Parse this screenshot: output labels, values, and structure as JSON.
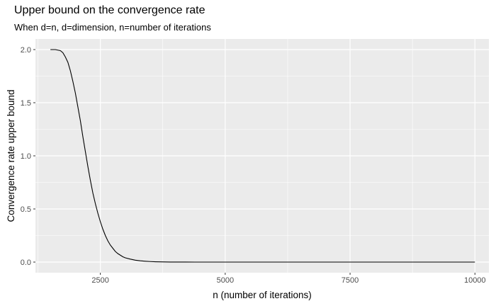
{
  "chart_data": {
    "type": "line",
    "title": "Upper bound on the convergence rate",
    "subtitle": "When d=n, d=dimension, n=number of iterations",
    "xlabel": "n (number of iterations)",
    "ylabel": "Convergence rate upper bound",
    "xlim": [
      1200,
      10280
    ],
    "ylim": [
      -0.1,
      2.1
    ],
    "x_ticks": [
      2500,
      5000,
      7500,
      10000
    ],
    "x_tick_labels": [
      "2500",
      "5000",
      "7500",
      "10000"
    ],
    "y_ticks": [
      0,
      0.5,
      1,
      1.5,
      2
    ],
    "y_tick_labels": [
      "0.0",
      "0.5",
      "1.0",
      "1.5",
      "2.0"
    ],
    "grid": true,
    "background": "#ebebeb",
    "grid_color": "#ffffff",
    "line_color": "#000000",
    "series": [
      {
        "x": [
          1500,
          1600,
          1700,
          1750,
          1800,
          1850,
          1900,
          1950,
          2000,
          2050,
          2100,
          2150,
          2200,
          2250,
          2300,
          2350,
          2400,
          2450,
          2500,
          2550,
          2600,
          2650,
          2700,
          2750,
          2800,
          2850,
          2900,
          2950,
          3000,
          3100,
          3200,
          3300,
          3400,
          3500,
          3600,
          3700,
          3800,
          3900,
          4000,
          4200,
          4400,
          4600,
          5000,
          6000,
          7000,
          8000,
          9000,
          10000
        ],
        "y": [
          2.0,
          2.0,
          1.99,
          1.97,
          1.93,
          1.88,
          1.8,
          1.7,
          1.59,
          1.46,
          1.33,
          1.18,
          1.04,
          0.9,
          0.77,
          0.65,
          0.55,
          0.46,
          0.38,
          0.31,
          0.25,
          0.2,
          0.16,
          0.13,
          0.1,
          0.08,
          0.065,
          0.05,
          0.04,
          0.028,
          0.018,
          0.012,
          0.008,
          0.005,
          0.003,
          0.002,
          0.001,
          0.0007,
          0.0004,
          0.0002,
          0.0001,
          0.0,
          0.0,
          0.0,
          0.0,
          0.0,
          0.0,
          0.0
        ]
      }
    ]
  }
}
